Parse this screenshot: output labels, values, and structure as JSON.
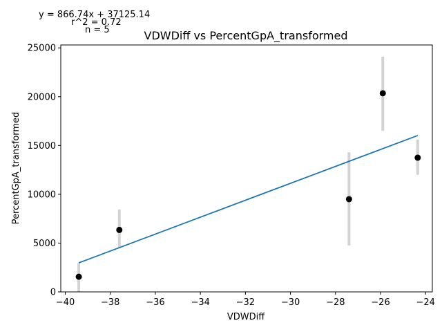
{
  "chart_data": {
    "type": "scatter",
    "title": "VDWDiff vs PercentGpA_transformed",
    "xlabel": "VDWDiff",
    "ylabel": "PercentGpA_transformed",
    "xlim": [
      -40.2,
      -23.7
    ],
    "ylim": [
      0,
      25300
    ],
    "xticks": [
      -40,
      -38,
      -36,
      -34,
      -32,
      -30,
      -28,
      -26,
      -24
    ],
    "yticks": [
      0,
      5000,
      10000,
      15000,
      20000,
      25000
    ],
    "xtick_labels": [
      "−40",
      "−38",
      "−36",
      "−34",
      "−32",
      "−30",
      "−28",
      "−26",
      "−24"
    ],
    "ytick_labels": [
      "0",
      "5000",
      "10000",
      "15000",
      "20000",
      "25000"
    ],
    "points": [
      {
        "x": -39.4,
        "y": 1550,
        "err_low": 0,
        "err_high": 2950
      },
      {
        "x": -37.6,
        "y": 6350,
        "err_low": 4450,
        "err_high": 8450
      },
      {
        "x": -27.4,
        "y": 9500,
        "err_low": 4750,
        "err_high": 14300
      },
      {
        "x": -25.9,
        "y": 20350,
        "err_low": 16500,
        "err_high": 24100
      },
      {
        "x": -24.35,
        "y": 13750,
        "err_low": 12000,
        "err_high": 15600
      }
    ],
    "fit_line": {
      "slope": 866.74,
      "intercept": 37125.14,
      "x_range": [
        -39.4,
        -24.35
      ]
    },
    "annotations": [
      "y = 866.74x + 37125.14",
      "r^2 = 0.72",
      "n = 5"
    ],
    "colors": {
      "line": "#1f77b4",
      "point": "#000000",
      "errorbar": "#d3d3d3"
    },
    "grid": false
  }
}
